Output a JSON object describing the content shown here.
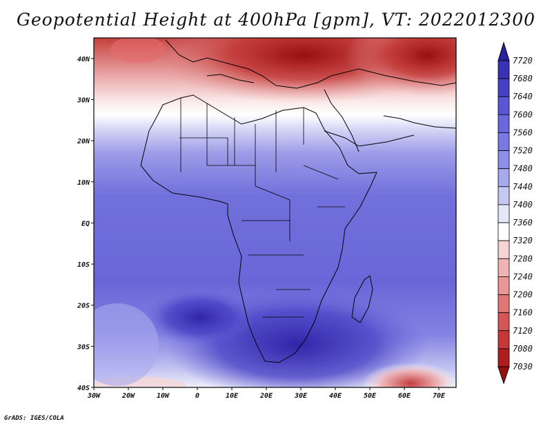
{
  "title": "Geopotential Height at 400hPa [gpm], VT: 2022012300",
  "credit": "GrADS: IGES/COLA",
  "map": {
    "region": "Africa",
    "lon_range": [
      -30,
      75
    ],
    "lat_range": [
      -40,
      45
    ],
    "x_ticks": [
      "30W",
      "20W",
      "10W",
      "0",
      "10E",
      "20E",
      "30E",
      "40E",
      "50E",
      "60E",
      "70E"
    ],
    "y_ticks": [
      "40N",
      "30N",
      "20N",
      "10N",
      "EQ",
      "10S",
      "20S",
      "30S",
      "40S"
    ],
    "field": "Geopotential Height at 400hPa",
    "units": "gpm"
  },
  "colorbar": {
    "levels": [
      "7720",
      "7680",
      "7640",
      "7600",
      "7560",
      "7520",
      "7480",
      "7440",
      "7400",
      "7360",
      "7320",
      "7280",
      "7240",
      "7200",
      "7160",
      "7120",
      "7080",
      "7030"
    ],
    "colors": [
      "#2c1fa0",
      "#3a32b5",
      "#4640c4",
      "#5a56d4",
      "#6a68dc",
      "#7a78e2",
      "#8e8ee8",
      "#a8aaee",
      "#c6c8f4",
      "#e6e8fa",
      "#ffffff",
      "#f6d4d4",
      "#f0b4b4",
      "#e89696",
      "#de7676",
      "#d45656",
      "#c63838",
      "#ae1e1e",
      "#961010"
    ]
  },
  "colors": {
    "low": "#a01818",
    "mid": "#ffffff",
    "high": "#2a1e9e"
  }
}
